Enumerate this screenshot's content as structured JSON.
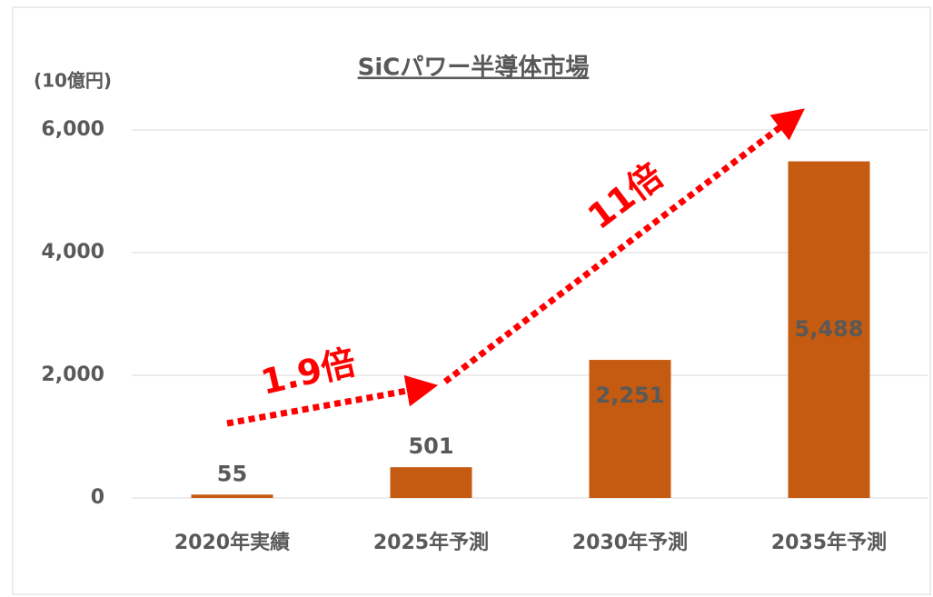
{
  "chart_data": {
    "type": "bar",
    "title": "SiCパワー半導体市場",
    "y_unit": "(10億円)",
    "categories": [
      "2020年実績",
      "2025年予測",
      "2030年予測",
      "2035年予測"
    ],
    "values": [
      55,
      501,
      2251,
      5488
    ],
    "value_labels": [
      "55",
      "501",
      "2,251",
      "5,488"
    ],
    "color": "#c55a11",
    "ylim": [
      0,
      6000
    ],
    "yticks": [
      0,
      {
        "value": 2000,
        "label": "2,000"
      },
      {
        "value": 4000,
        "label": "4,000"
      },
      {
        "value": 6000,
        "label": "6,000"
      }
    ],
    "grid": true,
    "annotations": [
      "1.9倍",
      "11倍"
    ]
  }
}
